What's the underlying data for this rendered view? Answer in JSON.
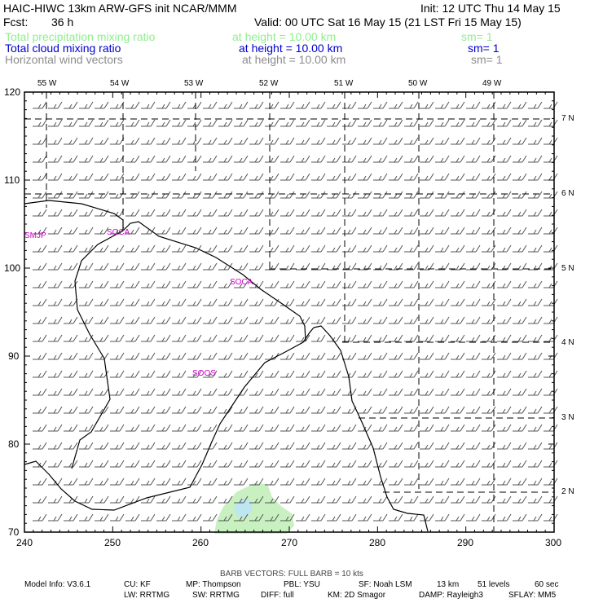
{
  "header": {
    "title": "HAIC-HIWC 13km ARW-GFS init   NCAR/MMM",
    "init": "Init: 12 UTC Thu 14 May 15",
    "fcst_label": "Fcst:",
    "fcst_value": "36 h",
    "valid": "Valid: 00 UTC Sat 16 May 15 (21 LST Fri 15 May 15)"
  },
  "fields": [
    {
      "name": "Total precipitation mixing ratio",
      "height": "at height = 10.00 km",
      "sm": "sm= 1",
      "color": "#90ee90"
    },
    {
      "name": "Total cloud mixing ratio",
      "height": "at height = 10.00 km",
      "sm": "sm= 1",
      "color": "#0000cd"
    },
    {
      "name": "Horizontal wind vectors",
      "height": "at height = 10.00 km",
      "sm": "sm= 1",
      "color": "#8c8c8c"
    }
  ],
  "axes": {
    "x_ticks": [
      "240",
      "250",
      "260",
      "270",
      "280",
      "290",
      "300"
    ],
    "y_ticks": [
      "70",
      "80",
      "90",
      "100",
      "110",
      "120"
    ],
    "lon_labels": [
      "55 W",
      "54 W",
      "53 W",
      "52 W",
      "51 W",
      "50 W",
      "49 W"
    ],
    "lat_labels": [
      "7 N",
      "6 N",
      "5 N",
      "4 N",
      "3 N",
      "2 N"
    ]
  },
  "stations": [
    {
      "id": "SMJP"
    },
    {
      "id": "SOCA"
    },
    {
      "id": "SOCA"
    },
    {
      "id": "SOOS"
    }
  ],
  "colors": {
    "station": "#cc00cc",
    "precip_light": "#c8f0c0",
    "precip_core": "#bde6f0",
    "barb": "#555555"
  },
  "footer": {
    "barb_note": "BARB VECTORS:  FULL BARB = 10 kts",
    "line1": [
      "Model Info: V3.6.1",
      "CU: KF",
      "MP: Thompson",
      "PBL: YSU",
      "SF: Noah LSM",
      "13 km",
      "51 levels",
      "60 sec"
    ],
    "line2": [
      "LW: RRTMG",
      "SW: RRTMG",
      "DIFF: full",
      "KM: 2D Smagor",
      "DAMP: Rayleigh3",
      "SFLAY: MM5"
    ]
  }
}
